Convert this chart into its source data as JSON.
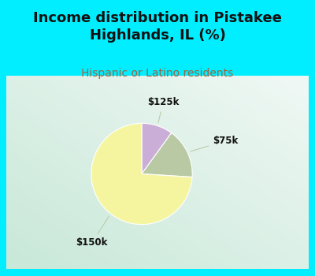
{
  "title": "Income distribution in Pistakee\nHighlands, IL (%)",
  "subtitle": "Hispanic or Latino residents",
  "slices": [
    {
      "label": "$125k",
      "value": 10,
      "color": "#cbaed8"
    },
    {
      "label": "$75k",
      "value": 16,
      "color": "#b8c9a3"
    },
    {
      "label": "$150k",
      "value": 74,
      "color": "#f5f5a0"
    }
  ],
  "bg_color_top": "#00eeff",
  "chart_bg_left": "#c8e8d8",
  "chart_bg_right": "#e8f4f0",
  "title_fontsize": 13,
  "subtitle_fontsize": 10,
  "subtitle_color": "#996644",
  "title_color": "#111111",
  "label_fontsize": 8.5,
  "label_color": "#111111",
  "line_color": "#bbccaa",
  "startangle": 90,
  "midpoints": [
    72,
    25,
    -128
  ]
}
